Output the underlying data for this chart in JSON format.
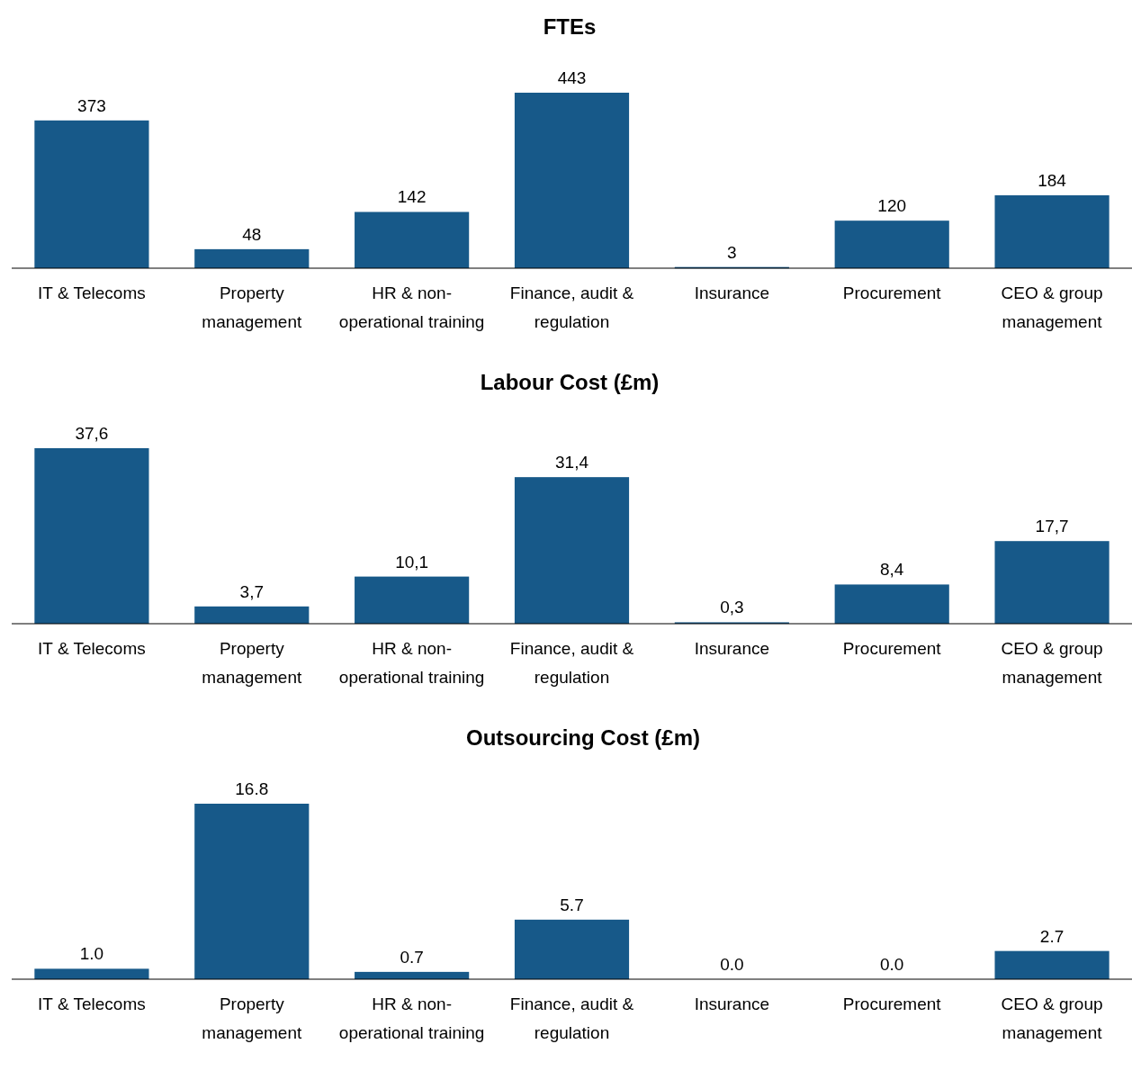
{
  "chart_data": [
    {
      "type": "bar",
      "title": "FTEs",
      "categories": [
        "IT & Telecoms",
        "Property management",
        "HR & non-operational training",
        "Finance, audit & regulation",
        "Insurance",
        "Procurement",
        "CEO & group management"
      ],
      "values": [
        373,
        48,
        142,
        443,
        3,
        120,
        184
      ],
      "color": "#175989",
      "value_labels": [
        "373",
        "48",
        "142",
        "443",
        "3",
        "120",
        "184"
      ]
    },
    {
      "type": "bar",
      "title": "Labour Cost (£m)",
      "categories": [
        "IT & Telecoms",
        "Property management",
        "HR & non-operational training",
        "Finance, audit & regulation",
        "Insurance",
        "Procurement",
        "CEO & group management"
      ],
      "values": [
        37.6,
        3.7,
        10.1,
        31.4,
        0.3,
        8.4,
        17.7
      ],
      "color": "#175989",
      "value_labels": [
        "37,6",
        "3,7",
        "10,1",
        "31,4",
        "0,3",
        "8,4",
        "17,7"
      ]
    },
    {
      "type": "bar",
      "title": "Outsourcing Cost (£m)",
      "categories": [
        "IT & Telecoms",
        "Property management",
        "HR & non-operational training",
        "Finance, audit & regulation",
        "Insurance",
        "Procurement",
        "CEO & group management"
      ],
      "values": [
        1.0,
        16.8,
        0.7,
        5.7,
        0.0,
        0.0,
        2.7
      ],
      "color": "#175989",
      "value_labels": [
        "1.0",
        "16.8",
        "0.7",
        "5.7",
        "0.0",
        "0.0",
        "2.7"
      ]
    }
  ]
}
